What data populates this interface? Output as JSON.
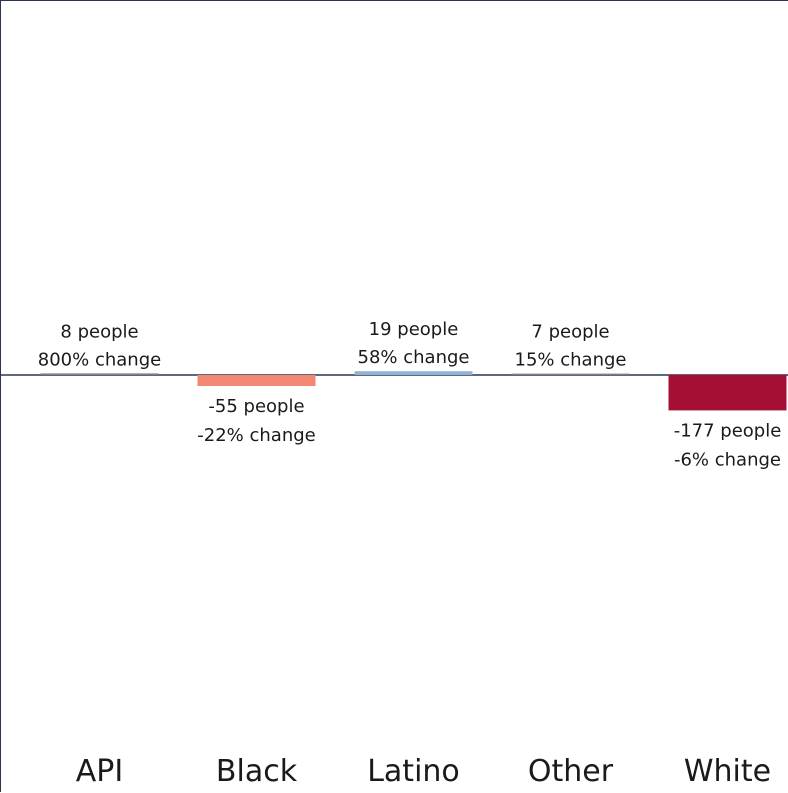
{
  "chart_data": {
    "type": "bar",
    "title": "",
    "xlabel": "",
    "ylabel": "",
    "categories": [
      "API",
      "Black",
      "Latino",
      "Other",
      "White"
    ],
    "values": [
      8,
      -55,
      19,
      7,
      -177
    ],
    "percent_change": [
      800,
      -22,
      58,
      15,
      -6
    ],
    "label_line1": [
      "8 people",
      "-55 people",
      "19 people",
      "7 people",
      "-177 people"
    ],
    "label_line2": [
      "800% change",
      "-22% change",
      "58% change",
      "15% change",
      "-6% change"
    ],
    "colors": [
      "#7f7f7f",
      "#f28773",
      "#8fb4d6",
      "#7f7f7f",
      "#a50f34"
    ],
    "ylim": [
      -1000,
      1000
    ],
    "grid": false,
    "legend": "none"
  }
}
